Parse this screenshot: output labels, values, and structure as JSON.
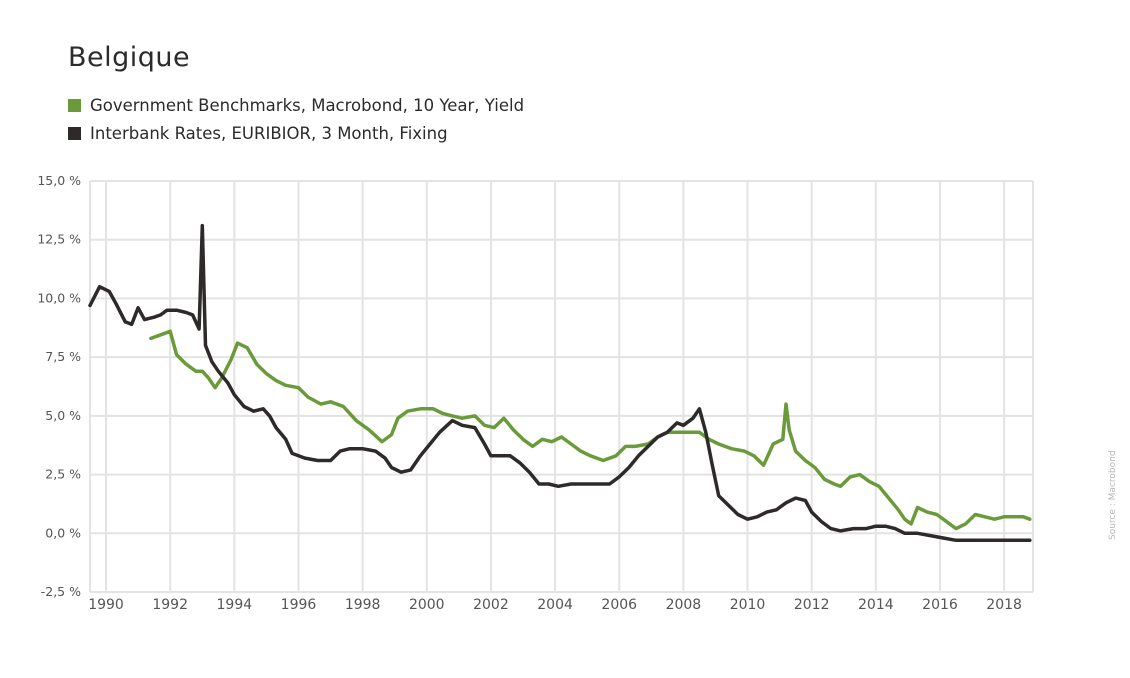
{
  "chart_data": {
    "type": "line",
    "title": "Belgique",
    "xlabel": "",
    "ylabel": "",
    "xlim": [
      1989.5,
      2018.9
    ],
    "ylim": [
      -2.5,
      15.0
    ],
    "grid": true,
    "legend_position": "top-left",
    "x_ticks": [
      "1990",
      "1992",
      "1994",
      "1996",
      "1998",
      "2000",
      "2002",
      "2004",
      "2006",
      "2008",
      "2010",
      "2012",
      "2014",
      "2016",
      "2018"
    ],
    "y_ticks": [
      "15,0 %",
      "12,5 %",
      "10,0 %",
      "7,5 %",
      "5,0 %",
      "2,5 %",
      "0,0 %",
      "-2,5 %"
    ],
    "series": [
      {
        "name": "Government Benchmarks, Macrobond, 10 Year, Yield",
        "color": "#6a9b3a",
        "points": [
          [
            1991.4,
            8.3
          ],
          [
            1991.8,
            8.5
          ],
          [
            1992.0,
            8.6
          ],
          [
            1992.2,
            7.6
          ],
          [
            1992.5,
            7.2
          ],
          [
            1992.8,
            6.9
          ],
          [
            1993.0,
            6.9
          ],
          [
            1993.2,
            6.6
          ],
          [
            1993.4,
            6.2
          ],
          [
            1993.6,
            6.6
          ],
          [
            1993.9,
            7.4
          ],
          [
            1994.1,
            8.1
          ],
          [
            1994.4,
            7.9
          ],
          [
            1994.7,
            7.2
          ],
          [
            1995.0,
            6.8
          ],
          [
            1995.3,
            6.5
          ],
          [
            1995.6,
            6.3
          ],
          [
            1996.0,
            6.2
          ],
          [
            1996.3,
            5.8
          ],
          [
            1996.7,
            5.5
          ],
          [
            1997.0,
            5.6
          ],
          [
            1997.4,
            5.4
          ],
          [
            1997.8,
            4.8
          ],
          [
            1998.2,
            4.4
          ],
          [
            1998.6,
            3.9
          ],
          [
            1998.9,
            4.2
          ],
          [
            1999.1,
            4.9
          ],
          [
            1999.4,
            5.2
          ],
          [
            1999.8,
            5.3
          ],
          [
            2000.2,
            5.3
          ],
          [
            2000.5,
            5.1
          ],
          [
            2000.8,
            5.0
          ],
          [
            2001.1,
            4.9
          ],
          [
            2001.5,
            5.0
          ],
          [
            2001.8,
            4.6
          ],
          [
            2002.1,
            4.5
          ],
          [
            2002.4,
            4.9
          ],
          [
            2002.7,
            4.4
          ],
          [
            2003.0,
            4.0
          ],
          [
            2003.3,
            3.7
          ],
          [
            2003.6,
            4.0
          ],
          [
            2003.9,
            3.9
          ],
          [
            2004.2,
            4.1
          ],
          [
            2004.5,
            3.8
          ],
          [
            2004.8,
            3.5
          ],
          [
            2005.1,
            3.3
          ],
          [
            2005.5,
            3.1
          ],
          [
            2005.9,
            3.3
          ],
          [
            2006.2,
            3.7
          ],
          [
            2006.5,
            3.7
          ],
          [
            2006.9,
            3.8
          ],
          [
            2007.2,
            4.1
          ],
          [
            2007.5,
            4.3
          ],
          [
            2007.9,
            4.3
          ],
          [
            2008.2,
            4.3
          ],
          [
            2008.5,
            4.3
          ],
          [
            2008.8,
            4.0
          ],
          [
            2009.1,
            3.8
          ],
          [
            2009.5,
            3.6
          ],
          [
            2009.9,
            3.5
          ],
          [
            2010.2,
            3.3
          ],
          [
            2010.5,
            2.9
          ],
          [
            2010.8,
            3.8
          ],
          [
            2011.1,
            4.0
          ],
          [
            2011.2,
            5.5
          ],
          [
            2011.3,
            4.4
          ],
          [
            2011.5,
            3.5
          ],
          [
            2011.8,
            3.1
          ],
          [
            2012.1,
            2.8
          ],
          [
            2012.4,
            2.3
          ],
          [
            2012.7,
            2.1
          ],
          [
            2012.9,
            2.0
          ],
          [
            2013.2,
            2.4
          ],
          [
            2013.5,
            2.5
          ],
          [
            2013.8,
            2.2
          ],
          [
            2014.1,
            2.0
          ],
          [
            2014.4,
            1.5
          ],
          [
            2014.7,
            1.0
          ],
          [
            2014.9,
            0.6
          ],
          [
            2015.1,
            0.4
          ],
          [
            2015.3,
            1.1
          ],
          [
            2015.6,
            0.9
          ],
          [
            2015.9,
            0.8
          ],
          [
            2016.2,
            0.5
          ],
          [
            2016.5,
            0.2
          ],
          [
            2016.8,
            0.4
          ],
          [
            2017.1,
            0.8
          ],
          [
            2017.4,
            0.7
          ],
          [
            2017.7,
            0.6
          ],
          [
            2018.0,
            0.7
          ],
          [
            2018.3,
            0.7
          ],
          [
            2018.6,
            0.7
          ],
          [
            2018.8,
            0.6
          ]
        ]
      },
      {
        "name": "Interbank Rates, EURIBIOR, 3 Month, Fixing",
        "color": "#2e2a2a",
        "points": [
          [
            1989.5,
            9.7
          ],
          [
            1989.8,
            10.5
          ],
          [
            1990.1,
            10.3
          ],
          [
            1990.3,
            9.8
          ],
          [
            1990.6,
            9.0
          ],
          [
            1990.8,
            8.9
          ],
          [
            1991.0,
            9.6
          ],
          [
            1991.2,
            9.1
          ],
          [
            1991.5,
            9.2
          ],
          [
            1991.7,
            9.3
          ],
          [
            1991.9,
            9.5
          ],
          [
            1992.2,
            9.5
          ],
          [
            1992.5,
            9.4
          ],
          [
            1992.7,
            9.3
          ],
          [
            1992.9,
            8.7
          ],
          [
            1993.0,
            13.1
          ],
          [
            1993.1,
            8.0
          ],
          [
            1993.3,
            7.3
          ],
          [
            1993.5,
            6.9
          ],
          [
            1993.8,
            6.4
          ],
          [
            1994.0,
            5.9
          ],
          [
            1994.3,
            5.4
          ],
          [
            1994.6,
            5.2
          ],
          [
            1994.9,
            5.3
          ],
          [
            1995.1,
            5.0
          ],
          [
            1995.3,
            4.5
          ],
          [
            1995.6,
            4.0
          ],
          [
            1995.8,
            3.4
          ],
          [
            1996.2,
            3.2
          ],
          [
            1996.6,
            3.1
          ],
          [
            1997.0,
            3.1
          ],
          [
            1997.3,
            3.5
          ],
          [
            1997.6,
            3.6
          ],
          [
            1998.0,
            3.6
          ],
          [
            1998.4,
            3.5
          ],
          [
            1998.7,
            3.2
          ],
          [
            1998.9,
            2.8
          ],
          [
            1999.2,
            2.6
          ],
          [
            1999.5,
            2.7
          ],
          [
            1999.8,
            3.3
          ],
          [
            2000.1,
            3.8
          ],
          [
            2000.4,
            4.3
          ],
          [
            2000.8,
            4.8
          ],
          [
            2001.1,
            4.6
          ],
          [
            2001.5,
            4.5
          ],
          [
            2001.8,
            3.8
          ],
          [
            2002.0,
            3.3
          ],
          [
            2002.3,
            3.3
          ],
          [
            2002.6,
            3.3
          ],
          [
            2002.9,
            3.0
          ],
          [
            2003.2,
            2.6
          ],
          [
            2003.5,
            2.1
          ],
          [
            2003.8,
            2.1
          ],
          [
            2004.1,
            2.0
          ],
          [
            2004.5,
            2.1
          ],
          [
            2004.9,
            2.1
          ],
          [
            2005.3,
            2.1
          ],
          [
            2005.7,
            2.1
          ],
          [
            2006.0,
            2.4
          ],
          [
            2006.3,
            2.8
          ],
          [
            2006.6,
            3.3
          ],
          [
            2006.9,
            3.7
          ],
          [
            2007.2,
            4.1
          ],
          [
            2007.5,
            4.3
          ],
          [
            2007.8,
            4.7
          ],
          [
            2008.0,
            4.6
          ],
          [
            2008.3,
            4.9
          ],
          [
            2008.5,
            5.3
          ],
          [
            2008.7,
            4.3
          ],
          [
            2008.9,
            2.9
          ],
          [
            2009.1,
            1.6
          ],
          [
            2009.4,
            1.2
          ],
          [
            2009.7,
            0.8
          ],
          [
            2010.0,
            0.6
          ],
          [
            2010.3,
            0.7
          ],
          [
            2010.6,
            0.9
          ],
          [
            2010.9,
            1.0
          ],
          [
            2011.2,
            1.3
          ],
          [
            2011.5,
            1.5
          ],
          [
            2011.8,
            1.4
          ],
          [
            2012.0,
            0.9
          ],
          [
            2012.3,
            0.5
          ],
          [
            2012.6,
            0.2
          ],
          [
            2012.9,
            0.1
          ],
          [
            2013.3,
            0.2
          ],
          [
            2013.7,
            0.2
          ],
          [
            2014.0,
            0.3
          ],
          [
            2014.3,
            0.3
          ],
          [
            2014.6,
            0.2
          ],
          [
            2014.9,
            0.0
          ],
          [
            2015.3,
            0.0
          ],
          [
            2015.7,
            -0.1
          ],
          [
            2016.1,
            -0.2
          ],
          [
            2016.5,
            -0.3
          ],
          [
            2016.9,
            -0.3
          ],
          [
            2017.3,
            -0.3
          ],
          [
            2017.7,
            -0.3
          ],
          [
            2018.1,
            -0.3
          ],
          [
            2018.5,
            -0.3
          ],
          [
            2018.8,
            -0.3
          ]
        ]
      }
    ]
  },
  "source_note": "Source : Macrobond"
}
